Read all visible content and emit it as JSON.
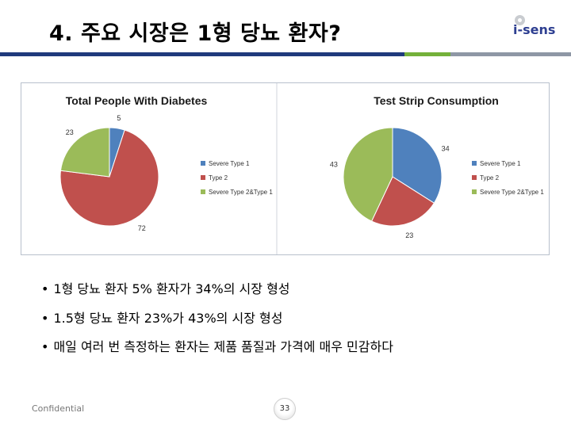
{
  "header": {
    "title": "4. 주요 시장은 1형 당뇨 환자?",
    "logo_text": "i-sens",
    "bar_colors": [
      "#1f3a7c",
      "#74b13a",
      "#8e97a5"
    ]
  },
  "chart_data": [
    {
      "type": "pie",
      "title": "Total People With Diabetes",
      "categories": [
        "Severe Type 1",
        "Type 2",
        "Severe Type 2&Type 1"
      ],
      "values": [
        5,
        72,
        23
      ],
      "colors": [
        "#4f81bd",
        "#c0504d",
        "#9bbb59"
      ],
      "legend": "right"
    },
    {
      "type": "pie",
      "title": "Test Strip Consumption",
      "categories": [
        "Severe Type 1",
        "Type 2",
        "Severe Type 2&Type 1"
      ],
      "values": [
        34,
        23,
        43
      ],
      "colors": [
        "#4f81bd",
        "#c0504d",
        "#9bbb59"
      ],
      "legend": "right"
    }
  ],
  "bullets": [
    "1형 당뇨 환자 5% 환자가 34%의 시장 형성",
    "1.5형 당뇨 환자 23%가 43%의 시장 형성",
    "매일 여러 번 측정하는 환자는 제품 품질과 가격에 매우 민감하다"
  ],
  "bullet_marker": "•",
  "footer": {
    "confidential": "Confidential",
    "page_number": "33"
  }
}
